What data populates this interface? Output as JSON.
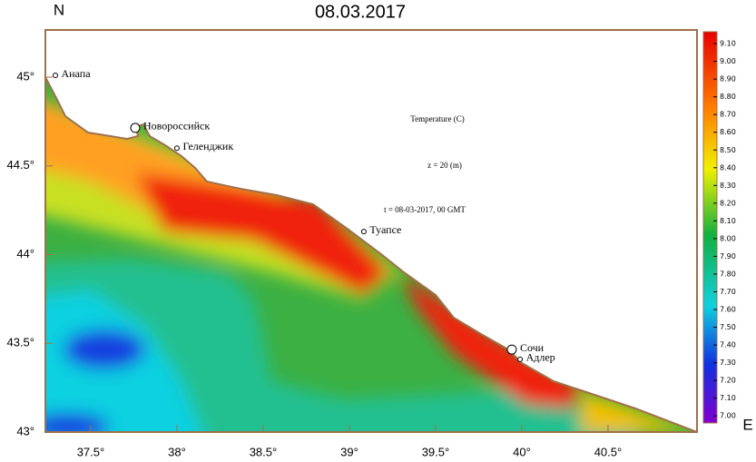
{
  "chart_data": {
    "type": "map",
    "title": "08.03.2017",
    "y_axis_label": "N",
    "x_axis_label": "E",
    "xlim": [
      37.237,
      41.016
    ],
    "ylim": [
      43,
      45.266
    ],
    "xticks": [
      {
        "value": 37.5,
        "label": "37.5°"
      },
      {
        "value": 38,
        "label": "38°"
      },
      {
        "value": 38.5,
        "label": "38.5°"
      },
      {
        "value": 39,
        "label": "39°"
      },
      {
        "value": 39.5,
        "label": "39.5°"
      },
      {
        "value": 40,
        "label": "40°"
      },
      {
        "value": 40.5,
        "label": "40.5°"
      }
    ],
    "yticks": [
      {
        "value": 43,
        "label": "43°"
      },
      {
        "value": 43.5,
        "label": "43.5°"
      },
      {
        "value": 44,
        "label": "44°"
      },
      {
        "value": 44.5,
        "label": "44.5°"
      },
      {
        "value": 45,
        "label": "45°"
      }
    ],
    "colorbar": {
      "lim": [
        6.96,
        9.167
      ],
      "ticks": [
        {
          "value": 7.0,
          "label": "7.00"
        },
        {
          "value": 7.1,
          "label": "7.10"
        },
        {
          "value": 7.2,
          "label": "7.20"
        },
        {
          "value": 7.3,
          "label": "7.30"
        },
        {
          "value": 7.4,
          "label": "7.40"
        },
        {
          "value": 7.5,
          "label": "7.50"
        },
        {
          "value": 7.6,
          "label": "7.60"
        },
        {
          "value": 7.7,
          "label": "7.70"
        },
        {
          "value": 7.8,
          "label": "7.80"
        },
        {
          "value": 7.9,
          "label": "7.90"
        },
        {
          "value": 8.0,
          "label": "8.00"
        },
        {
          "value": 8.1,
          "label": "8.10"
        },
        {
          "value": 8.2,
          "label": "8.20"
        },
        {
          "value": 8.3,
          "label": "8.30"
        },
        {
          "value": 8.4,
          "label": "8.40"
        },
        {
          "value": 8.5,
          "label": "8.50"
        },
        {
          "value": 8.6,
          "label": "8.60"
        },
        {
          "value": 8.7,
          "label": "8.70"
        },
        {
          "value": 8.8,
          "label": "8.80"
        },
        {
          "value": 8.9,
          "label": "8.90"
        },
        {
          "value": 9.0,
          "label": "9.00"
        },
        {
          "value": 9.1,
          "label": "9.10"
        }
      ]
    },
    "annotations": [
      "Temperature (C)",
      "z = 20 (m)",
      "t = 08-03-2017, 00 GMT"
    ],
    "places": [
      {
        "name": "Анапа",
        "lon": 37.295,
        "lat": 45.01
      },
      {
        "name": "Новороссийск",
        "lon": 37.758,
        "lat": 44.714
      },
      {
        "name": "Геленджик",
        "lon": 38.0,
        "lat": 44.6
      },
      {
        "name": "Туапсе",
        "lon": 39.084,
        "lat": 44.13
      },
      {
        "name": "Сочи",
        "lon": 39.942,
        "lat": 43.465
      },
      {
        "name": "Адлер",
        "lon": 39.99,
        "lat": 43.41
      }
    ]
  }
}
